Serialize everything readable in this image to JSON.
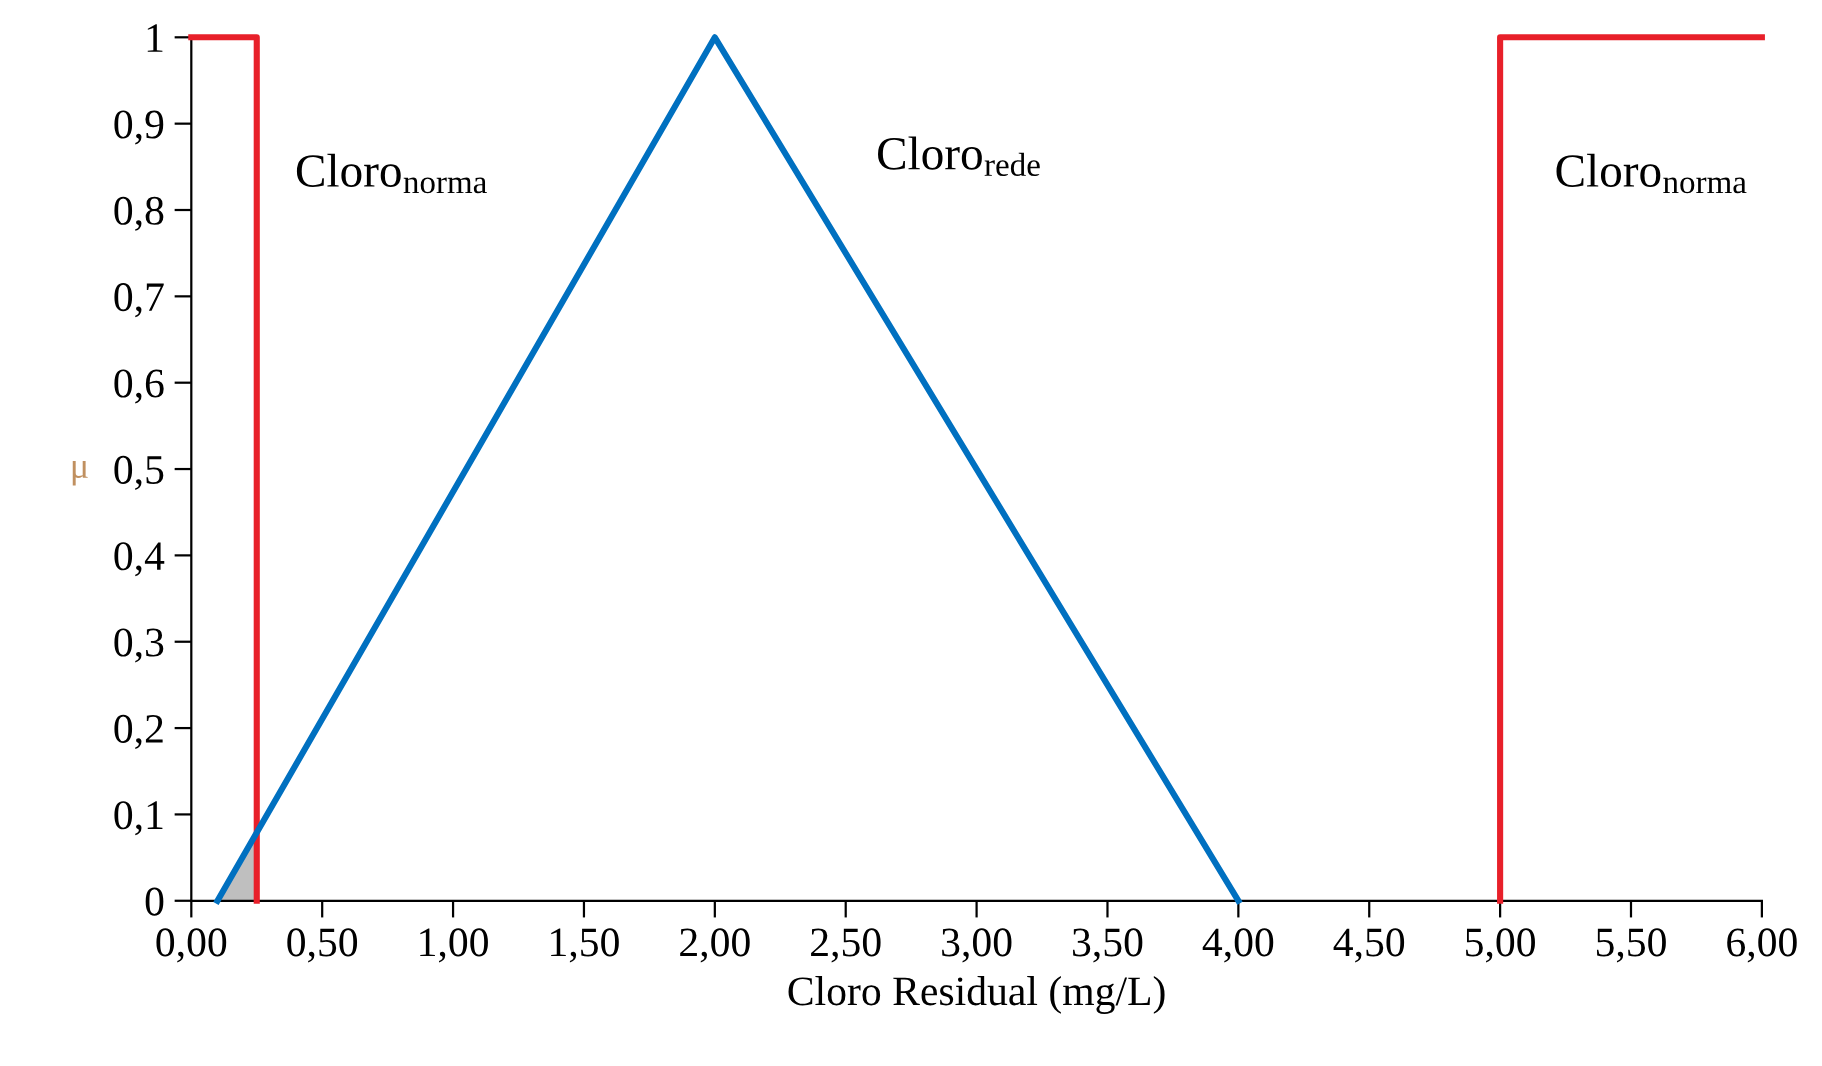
{
  "chart_data": {
    "type": "line",
    "xlabel": "Cloro Residual (mg/L)",
    "ylabel": "μ",
    "series": [
      {
        "type": "area",
        "color": "#bfbfbf",
        "x": [
          0.1,
          0.25
        ],
        "values": [
          0,
          0.079
        ]
      },
      {
        "color": "#e8202a",
        "x": [
          0,
          0.25,
          0.25
        ],
        "values": [
          1,
          1,
          0
        ]
      },
      {
        "color": "#0070c0",
        "x": [
          0.1,
          2,
          4
        ],
        "values": [
          0,
          1,
          0
        ]
      },
      {
        "color": "#e8202a",
        "x": [
          5,
          5,
          6
        ],
        "values": [
          0,
          1,
          1
        ]
      }
    ],
    "annotations": [
      "Cloro$_{norma}$",
      "Cloro$_{rede}$",
      "Cloro$_{norma}$"
    ],
    "xlim": [
      0,
      6
    ],
    "ylim": [
      0,
      1
    ],
    "xticks": [
      {
        "value": 0,
        "label": "0,00"
      },
      {
        "value": 0.5,
        "label": "0,50"
      },
      {
        "value": 1,
        "label": "1,00"
      },
      {
        "value": 1.5,
        "label": "1,50"
      },
      {
        "value": 2,
        "label": "2,00"
      },
      {
        "value": 2.5,
        "label": "2,50"
      },
      {
        "value": 3,
        "label": "3,00"
      },
      {
        "value": 3.5,
        "label": "3,50"
      },
      {
        "value": 4,
        "label": "4,00"
      },
      {
        "value": 4.5,
        "label": "4,50"
      },
      {
        "value": 5,
        "label": "5,00"
      },
      {
        "value": 5.5,
        "label": "5,50"
      },
      {
        "value": 6,
        "label": "6,00"
      }
    ],
    "yticks": [
      0,
      {
        "value": 0.1,
        "label": "0,1"
      },
      {
        "value": 0.2,
        "label": "0,2"
      },
      {
        "value": 0.3,
        "label": "0,3"
      },
      {
        "value": 0.4,
        "label": "0,4"
      },
      {
        "value": 0.5,
        "label": "0,5"
      },
      {
        "value": 0.6,
        "label": "0,6"
      },
      {
        "value": 0.7,
        "label": "0,7"
      },
      {
        "value": 0.8,
        "label": "0,8"
      },
      {
        "value": 0.9,
        "label": "0,9"
      },
      1
    ],
    "grid": false
  }
}
